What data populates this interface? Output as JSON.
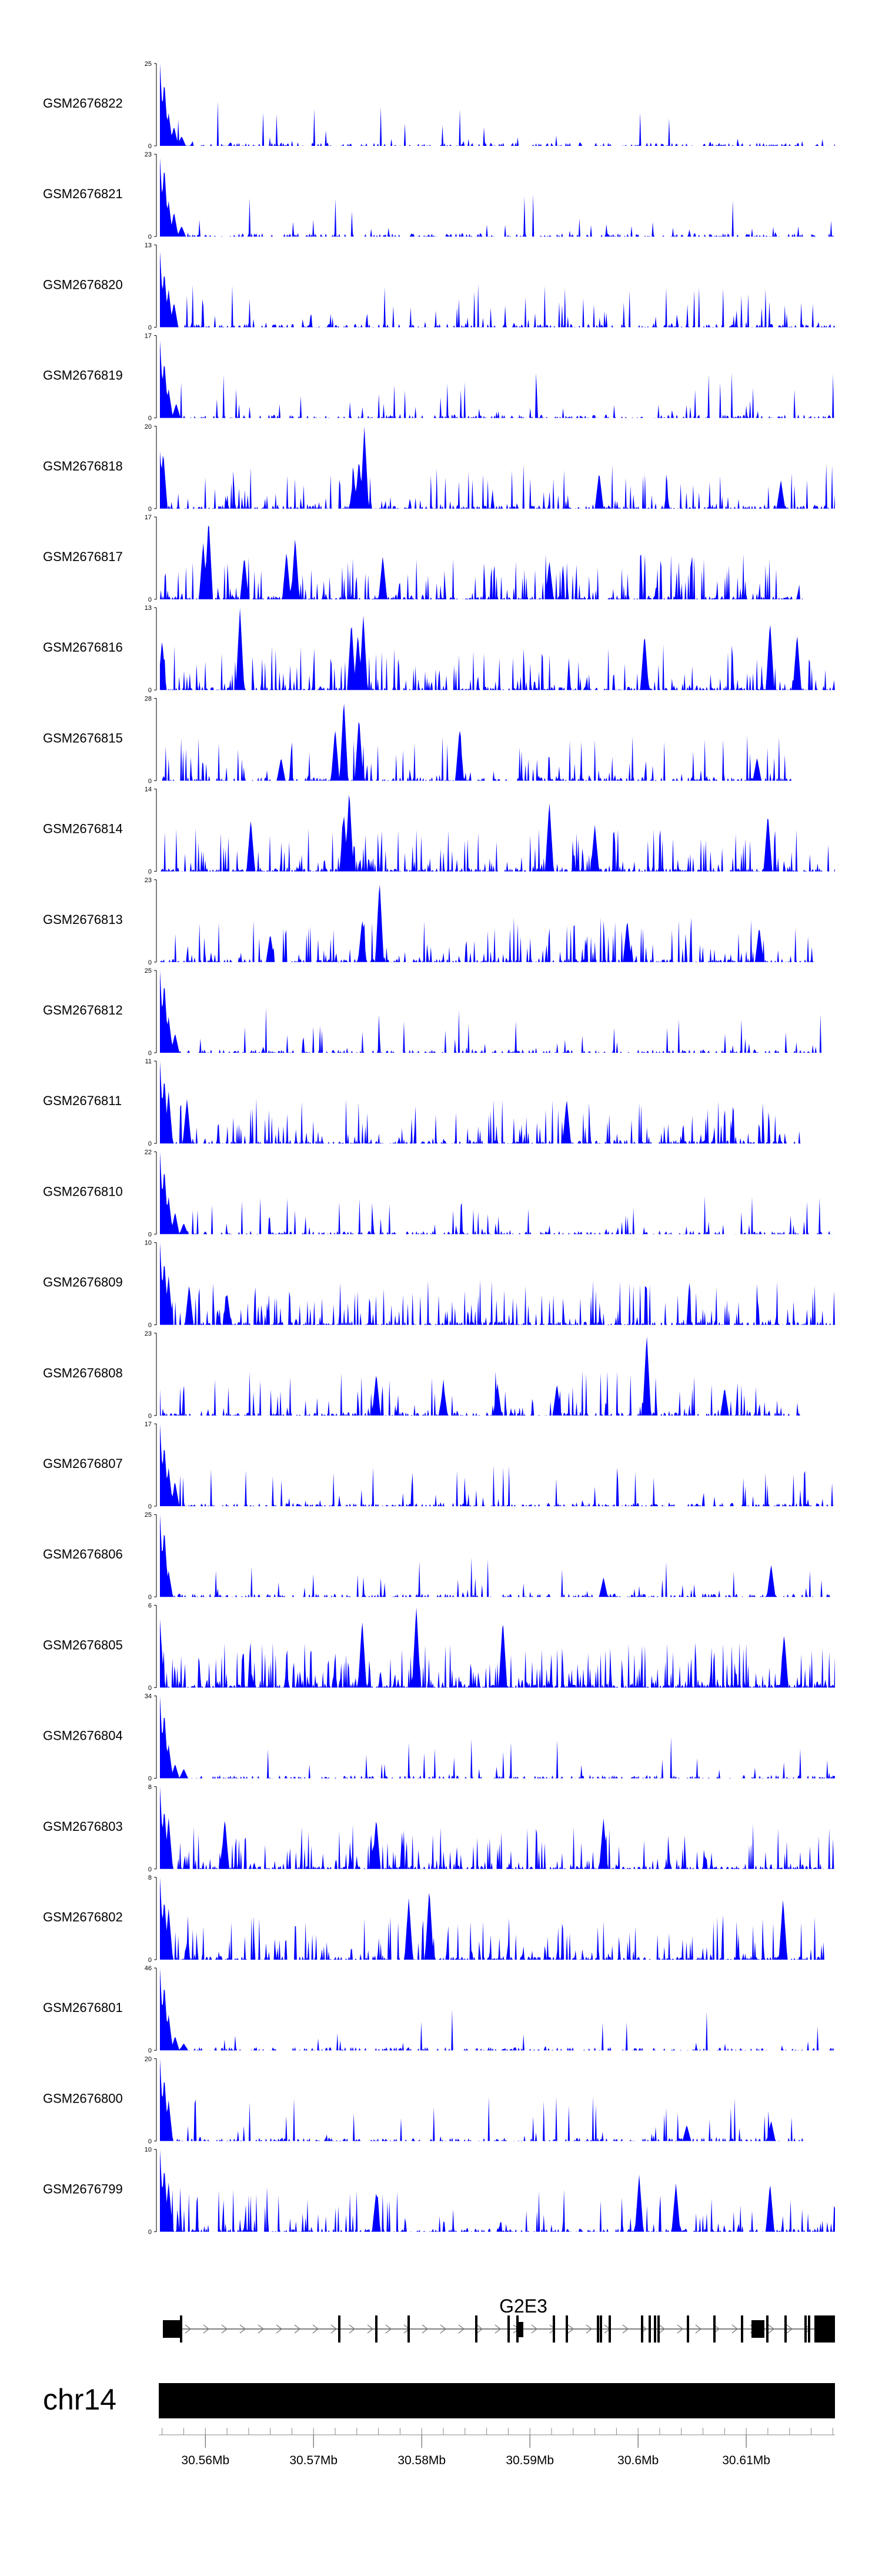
{
  "chart_data": {
    "type": "area",
    "title": "",
    "chromosome": "chr14",
    "region_mb": [
      30.5558,
      30.6182
    ],
    "gene": {
      "name": "G2E3",
      "strand": "+"
    },
    "x_ticks": [
      {
        "value": 30.56,
        "label": "30.56Mb"
      },
      {
        "value": 30.57,
        "label": "30.57Mb"
      },
      {
        "value": 30.58,
        "label": "30.58Mb"
      },
      {
        "value": 30.59,
        "label": "30.59Mb"
      },
      {
        "value": 30.6,
        "label": "30.6Mb"
      },
      {
        "value": 30.61,
        "label": "30.61Mb"
      }
    ],
    "tracks": [
      {
        "name": "GSM2676822",
        "ymax": 25,
        "zero_label": "0",
        "ymax_label": "25",
        "color": "#0000ff",
        "end": 30.6182,
        "noise": 0.05,
        "peaks": [
          [
            30.5558,
            25
          ],
          [
            30.5562,
            20
          ],
          [
            30.5566,
            10
          ],
          [
            30.5571,
            6
          ],
          [
            30.5578,
            3
          ]
        ]
      },
      {
        "name": "GSM2676821",
        "ymax": 23,
        "zero_label": "0",
        "ymax_label": "23",
        "color": "#0000ff",
        "end": 30.6182,
        "noise": 0.06,
        "peaks": [
          [
            30.5558,
            22
          ],
          [
            30.5562,
            20
          ],
          [
            30.5566,
            10
          ],
          [
            30.5571,
            7
          ],
          [
            30.5578,
            3
          ]
        ]
      },
      {
        "name": "GSM2676820",
        "ymax": 13,
        "zero_label": "0",
        "ymax_label": "13",
        "color": "#0000ff",
        "end": 30.6182,
        "noise": 0.14,
        "peaks": [
          [
            30.5558,
            12
          ],
          [
            30.5562,
            9
          ],
          [
            30.5566,
            6
          ],
          [
            30.5571,
            4
          ]
        ]
      },
      {
        "name": "GSM2676819",
        "ymax": 17,
        "zero_label": "0",
        "ymax_label": "17",
        "color": "#0000ff",
        "end": 30.6182,
        "noise": 0.07,
        "peaks": [
          [
            30.5558,
            16
          ],
          [
            30.5562,
            12
          ],
          [
            30.5566,
            6
          ],
          [
            30.5573,
            3
          ]
        ]
      },
      {
        "name": "GSM2676818",
        "ymax": 20,
        "zero_label": "0",
        "ymax_label": "20",
        "color": "#0000ff",
        "end": 30.6182,
        "noise": 0.22,
        "peaks": [
          [
            30.5558,
            14
          ],
          [
            30.5561,
            14
          ],
          [
            30.5747,
            20
          ],
          [
            30.5742,
            12
          ],
          [
            30.5737,
            8
          ],
          [
            30.5964,
            9
          ],
          [
            30.6132,
            7
          ]
        ]
      },
      {
        "name": "GSM2676817",
        "ymax": 17,
        "zero_label": "0",
        "ymax_label": "17",
        "color": "#0000ff",
        "end": 30.6152,
        "noise": 0.3,
        "peaks": [
          [
            30.5603,
            17
          ],
          [
            30.5598,
            12
          ],
          [
            30.5675,
            10
          ],
          [
            30.5636,
            9
          ],
          [
            30.5683,
            13
          ],
          [
            30.5764,
            9
          ],
          [
            30.5918,
            8
          ]
        ]
      },
      {
        "name": "GSM2676816",
        "ymax": 13,
        "zero_label": "0",
        "ymax_label": "13",
        "color": "#0000ff",
        "end": 30.6182,
        "noise": 0.3,
        "peaks": [
          [
            30.5632,
            13
          ],
          [
            30.5735,
            11
          ],
          [
            30.5746,
            12
          ],
          [
            30.5741,
            9
          ],
          [
            30.6006,
            9
          ],
          [
            30.6122,
            11
          ],
          [
            30.6147,
            9
          ],
          [
            30.556,
            8
          ]
        ]
      },
      {
        "name": "GSM2676815",
        "ymax": 28,
        "zero_label": "0",
        "ymax_label": "28",
        "color": "#0000ff",
        "end": 30.6142,
        "noise": 0.22,
        "peaks": [
          [
            30.5728,
            28
          ],
          [
            30.5742,
            22
          ],
          [
            30.572,
            18
          ],
          [
            30.5835,
            18
          ],
          [
            30.567,
            8
          ],
          [
            30.611,
            8
          ]
        ]
      },
      {
        "name": "GSM2676814",
        "ymax": 14,
        "zero_label": "0",
        "ymax_label": "14",
        "color": "#0000ff",
        "end": 30.6182,
        "noise": 0.3,
        "peaks": [
          [
            30.5733,
            14
          ],
          [
            30.5728,
            10
          ],
          [
            30.5642,
            9
          ],
          [
            30.5918,
            12
          ],
          [
            30.612,
            10
          ],
          [
            30.596,
            8
          ]
        ]
      },
      {
        "name": "GSM2676813",
        "ymax": 23,
        "zero_label": "0",
        "ymax_label": "23",
        "color": "#0000ff",
        "end": 30.6162,
        "noise": 0.28,
        "peaks": [
          [
            30.5761,
            23
          ],
          [
            30.5745,
            12
          ],
          [
            30.599,
            12
          ],
          [
            30.6112,
            10
          ],
          [
            30.566,
            8
          ]
        ]
      },
      {
        "name": "GSM2676812",
        "ymax": 25,
        "zero_label": "0",
        "ymax_label": "25",
        "color": "#0000ff",
        "end": 30.617,
        "noise": 0.1,
        "peaks": [
          [
            30.5558,
            25
          ],
          [
            30.5562,
            22
          ],
          [
            30.5566,
            11
          ],
          [
            30.5572,
            6
          ]
        ]
      },
      {
        "name": "GSM2676811",
        "ymax": 11,
        "zero_label": "0",
        "ymax_label": "11",
        "color": "#0000ff",
        "end": 30.615,
        "noise": 0.28,
        "peaks": [
          [
            30.5558,
            11
          ],
          [
            30.5562,
            9
          ],
          [
            30.5566,
            7
          ],
          [
            30.5583,
            6
          ],
          [
            30.5934,
            6
          ]
        ]
      },
      {
        "name": "GSM2676810",
        "ymax": 22,
        "zero_label": "0",
        "ymax_label": "22",
        "color": "#0000ff",
        "end": 30.6182,
        "noise": 0.12,
        "peaks": [
          [
            30.5558,
            22
          ],
          [
            30.5562,
            18
          ],
          [
            30.5566,
            10
          ],
          [
            30.5572,
            6
          ],
          [
            30.558,
            3
          ]
        ]
      },
      {
        "name": "GSM2676809",
        "ymax": 10,
        "zero_label": "0",
        "ymax_label": "10",
        "color": "#0000ff",
        "end": 30.6182,
        "noise": 0.3,
        "peaks": [
          [
            30.5558,
            10
          ],
          [
            30.5562,
            8
          ],
          [
            30.5566,
            6
          ],
          [
            30.5585,
            5
          ],
          [
            30.562,
            4
          ]
        ]
      },
      {
        "name": "GSM2676808",
        "ymax": 23,
        "zero_label": "0",
        "ymax_label": "23",
        "color": "#0000ff",
        "end": 30.6152,
        "noise": 0.22,
        "peaks": [
          [
            30.6008,
            23
          ],
          [
            30.5758,
            12
          ],
          [
            30.587,
            9
          ],
          [
            30.582,
            9
          ],
          [
            30.5925,
            9
          ],
          [
            30.608,
            8
          ]
        ]
      },
      {
        "name": "GSM2676807",
        "ymax": 17,
        "zero_label": "0",
        "ymax_label": "17",
        "color": "#0000ff",
        "end": 30.6182,
        "noise": 0.12,
        "peaks": [
          [
            30.5558,
            17
          ],
          [
            30.5562,
            13
          ],
          [
            30.5566,
            8
          ],
          [
            30.5572,
            5
          ]
        ]
      },
      {
        "name": "GSM2676806",
        "ymax": 25,
        "zero_label": "0",
        "ymax_label": "25",
        "color": "#0000ff",
        "end": 30.6182,
        "noise": 0.1,
        "peaks": [
          [
            30.5558,
            25
          ],
          [
            30.5562,
            21
          ],
          [
            30.5566,
            8
          ],
          [
            30.6123,
            10
          ],
          [
            30.5968,
            6
          ]
        ]
      },
      {
        "name": "GSM2676805",
        "ymax": 6,
        "zero_label": "0",
        "ymax_label": "6",
        "color": "#0000ff",
        "end": 30.6182,
        "noise": 0.5,
        "peaks": [
          [
            30.5795,
            6
          ],
          [
            30.5558,
            5
          ],
          [
            30.5745,
            5
          ],
          [
            30.5875,
            5
          ],
          [
            30.6135,
            4
          ]
        ]
      },
      {
        "name": "GSM2676804",
        "ymax": 34,
        "zero_label": "0",
        "ymax_label": "34",
        "color": "#0000ff",
        "end": 30.6182,
        "noise": 0.06,
        "peaks": [
          [
            30.5558,
            34
          ],
          [
            30.5562,
            28
          ],
          [
            30.5566,
            14
          ],
          [
            30.5572,
            6
          ],
          [
            30.558,
            4
          ]
        ]
      },
      {
        "name": "GSM2676803",
        "ymax": 8,
        "zero_label": "0",
        "ymax_label": "8",
        "color": "#0000ff",
        "end": 30.6182,
        "noise": 0.34,
        "peaks": [
          [
            30.5558,
            8
          ],
          [
            30.5562,
            6
          ],
          [
            30.5566,
            5
          ],
          [
            30.5618,
            5
          ],
          [
            30.5758,
            5
          ],
          [
            30.5968,
            5
          ]
        ]
      },
      {
        "name": "GSM2676802",
        "ymax": 8,
        "zero_label": "0",
        "ymax_label": "8",
        "color": "#0000ff",
        "end": 30.6172,
        "noise": 0.3,
        "peaks": [
          [
            30.5558,
            8
          ],
          [
            30.5562,
            6
          ],
          [
            30.5566,
            5
          ],
          [
            30.5807,
            7
          ],
          [
            30.5788,
            6
          ],
          [
            30.6134,
            6
          ]
        ]
      },
      {
        "name": "GSM2676801",
        "ymax": 46,
        "zero_label": "0",
        "ymax_label": "46",
        "color": "#0000ff",
        "end": 30.6182,
        "noise": 0.03,
        "peaks": [
          [
            30.5558,
            46
          ],
          [
            30.5562,
            38
          ],
          [
            30.5566,
            20
          ],
          [
            30.5572,
            8
          ],
          [
            30.558,
            4
          ]
        ]
      },
      {
        "name": "GSM2676800",
        "ymax": 20,
        "zero_label": "0",
        "ymax_label": "20",
        "color": "#0000ff",
        "end": 30.6152,
        "noise": 0.1,
        "peaks": [
          [
            30.5558,
            20
          ],
          [
            30.5562,
            16
          ],
          [
            30.5566,
            10
          ],
          [
            30.6123,
            5
          ],
          [
            30.6045,
            4
          ]
        ]
      },
      {
        "name": "GSM2676799",
        "ymax": 10,
        "zero_label": "0",
        "ymax_label": "10",
        "color": "#0000ff",
        "end": 30.6182,
        "noise": 0.2,
        "peaks": [
          [
            30.5558,
            10
          ],
          [
            30.5562,
            8
          ],
          [
            30.5566,
            6
          ],
          [
            30.6001,
            7
          ],
          [
            30.6122,
            6
          ],
          [
            30.6035,
            6
          ],
          [
            30.5758,
            5
          ]
        ]
      }
    ]
  }
}
